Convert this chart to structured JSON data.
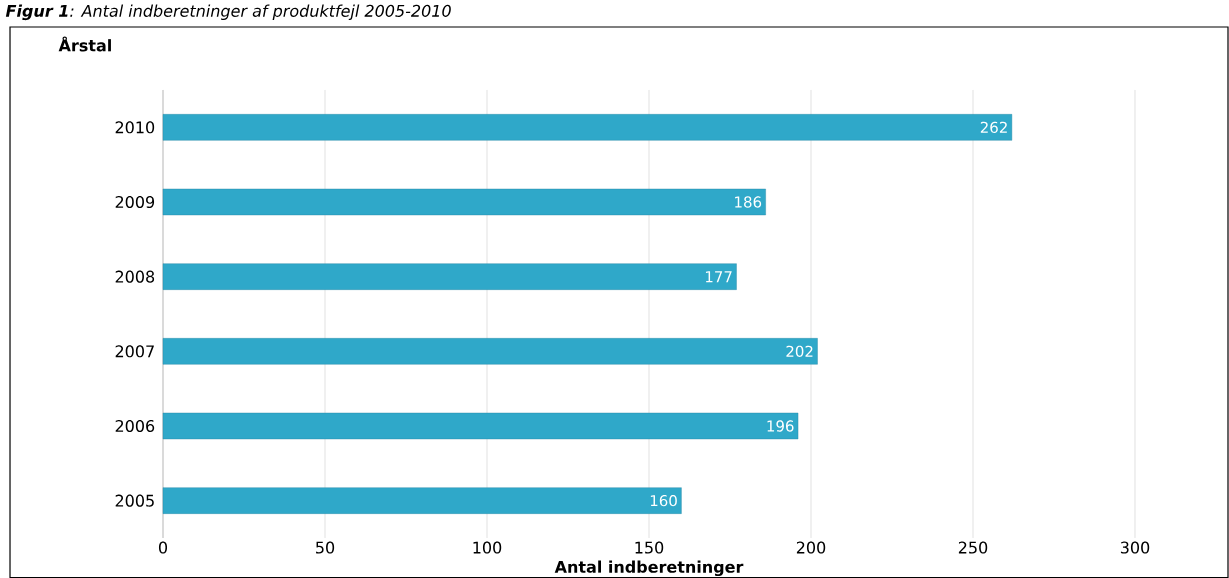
{
  "chart_data": {
    "type": "bar",
    "orientation": "horizontal",
    "title": "**Figur 1**: Antal indberetninger af produktfejl 2005-2010",
    "ylabel": "Årstal",
    "xlabel": "Antal indberetninger",
    "categories": [
      "2010",
      "2009",
      "2008",
      "2007",
      "2006",
      "2005"
    ],
    "values": [
      262,
      186,
      177,
      202,
      196,
      160
    ],
    "color": "#2fa8c9",
    "xlim": [
      0,
      300
    ],
    "xticks": [
      0,
      50,
      100,
      150,
      200,
      250,
      300
    ],
    "grid": "x",
    "data_labels": true
  }
}
